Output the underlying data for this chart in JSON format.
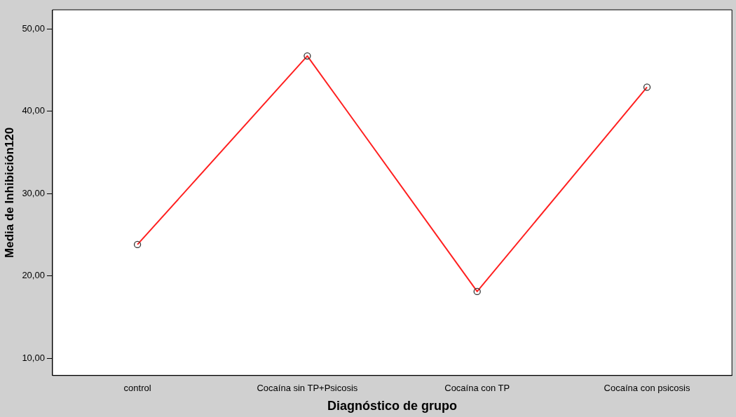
{
  "chart_data": {
    "type": "line",
    "xlabel": "Diagnóstico de grupo",
    "ylabel": "Media de Inhibición120",
    "categories": [
      "control",
      "Cocaína sin TP+Psicosis",
      "Cocaína con TP",
      "Cocaína con psicosis"
    ],
    "series": [
      {
        "color": "#ff2020",
        "values": [
          23.8,
          46.7,
          18.1,
          42.9
        ]
      }
    ],
    "ylim": [
      7.9,
      52.3
    ],
    "yticks": [
      {
        "value": 10,
        "label": "10,00"
      },
      {
        "value": 20,
        "label": "20,00"
      },
      {
        "value": 30,
        "label": "30,00"
      },
      {
        "value": 40,
        "label": "40,00"
      },
      {
        "value": 50,
        "label": "50,00"
      }
    ],
    "grid": false,
    "legend": false,
    "marker": "circle",
    "line_style": "solid"
  }
}
